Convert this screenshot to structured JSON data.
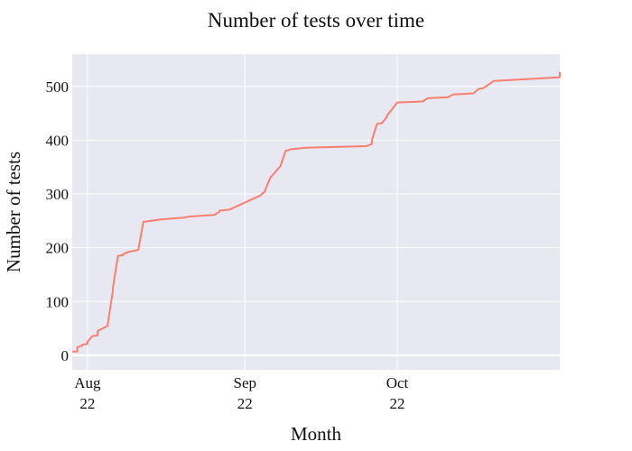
{
  "chart_data": {
    "type": "line",
    "title": "Number of tests over time",
    "xlabel": "Month",
    "ylabel": "Number of tests",
    "x_ticks": [
      {
        "date": "2022-08-01",
        "month": "Aug",
        "year": "22"
      },
      {
        "date": "2022-09-01",
        "month": "Sep",
        "year": "22"
      },
      {
        "date": "2022-10-01",
        "month": "Oct",
        "year": "22"
      }
    ],
    "y_ticks": [
      0,
      100,
      200,
      300,
      400,
      500
    ],
    "xlim": [
      "2022-07-29",
      "2022-11-02"
    ],
    "ylim": [
      -27,
      560
    ],
    "grid": true,
    "colors": {
      "line": "#fa7f6f",
      "plot_background": "#e8e8f2",
      "grid": "#ffffff"
    },
    "series": [
      {
        "x": [
          "2022-07-29",
          "2022-07-30",
          "2022-07-30",
          "2022-07-31",
          "2022-07-31",
          "2022-08-01",
          "2022-08-01",
          "2022-08-02",
          "2022-08-03",
          "2022-08-03",
          "2022-08-05",
          "2022-08-05",
          "2022-08-06",
          "2022-08-06",
          "2022-08-07",
          "2022-08-08",
          "2022-08-08",
          "2022-08-09",
          "2022-08-11",
          "2022-08-12",
          "2022-08-15",
          "2022-08-16",
          "2022-08-20",
          "2022-08-21",
          "2022-08-26",
          "2022-08-27",
          "2022-08-27",
          "2022-08-28",
          "2022-08-29",
          "2022-09-04",
          "2022-09-05",
          "2022-09-05",
          "2022-09-06",
          "2022-09-06",
          "2022-09-08",
          "2022-09-09",
          "2022-09-10",
          "2022-09-13",
          "2022-09-25",
          "2022-09-26",
          "2022-09-26",
          "2022-09-27",
          "2022-09-28",
          "2022-09-29",
          "2022-09-29",
          "2022-09-30",
          "2022-10-01",
          "2022-10-06",
          "2022-10-07",
          "2022-10-11",
          "2022-10-12",
          "2022-10-16",
          "2022-10-17",
          "2022-10-18",
          "2022-10-20",
          "2022-11-02",
          "2022-11-02"
        ],
        "y": [
          7,
          7,
          15,
          18,
          20,
          21,
          25,
          36,
          37,
          45,
          55,
          58,
          120,
          125,
          185,
          186,
          188,
          192,
          196,
          248,
          252,
          253,
          256,
          258,
          261,
          267,
          269,
          270,
          271,
          297,
          305,
          308,
          330,
          330,
          352,
          380,
          383,
          386,
          389,
          393,
          400,
          430,
          432,
          444,
          446,
          458,
          470,
          472,
          478,
          480,
          485,
          487,
          495,
          497,
          510,
          517,
          527
        ]
      }
    ]
  }
}
